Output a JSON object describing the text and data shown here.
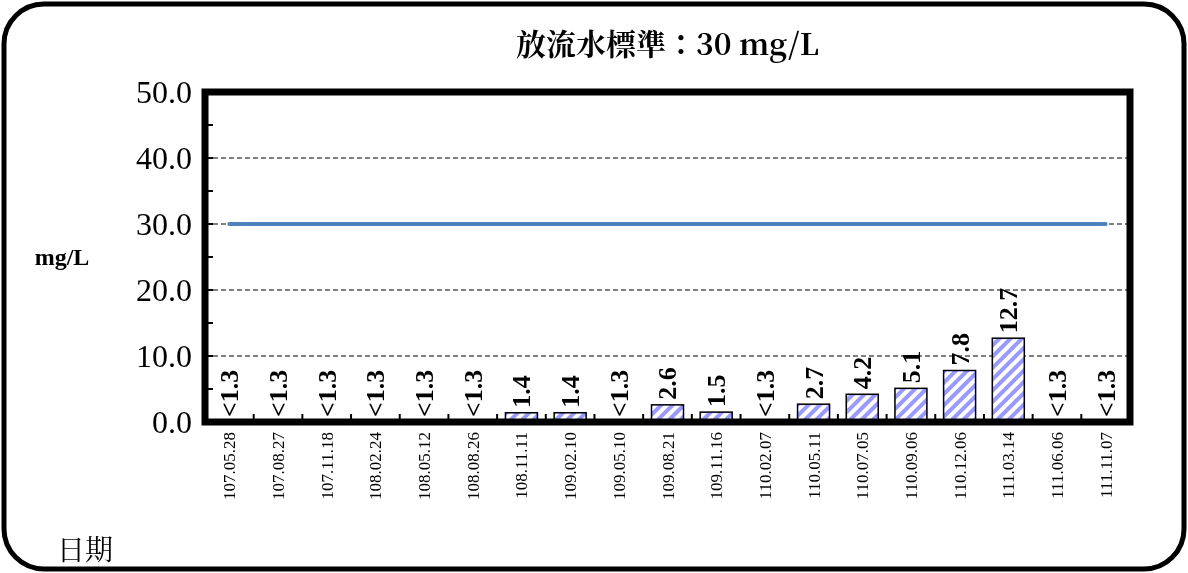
{
  "chart_data": {
    "type": "bar",
    "title": "放流水標準：30 mg/L",
    "xlabel": "日期",
    "ylabel": "mg/L",
    "categories": [
      "107.05.28",
      "107.08.27",
      "107.11.18",
      "108.02.24",
      "108.05.12",
      "108.08.26",
      "108.11.11",
      "109.02.10",
      "109.05.10",
      "109.08.21",
      "109.11.16",
      "110.02.07",
      "110.05.11",
      "110.07.05",
      "110.09.06",
      "110.12.06",
      "111.03.14",
      "111.06.06",
      "111.11.07"
    ],
    "values": [
      null,
      null,
      null,
      null,
      null,
      null,
      1.4,
      1.4,
      null,
      2.6,
      1.5,
      null,
      2.7,
      4.2,
      5.1,
      7.8,
      12.7,
      null,
      null
    ],
    "value_labels": [
      "<1.3",
      "<1.3",
      "<1.3",
      "<1.3",
      "<1.3",
      "<1.3",
      "1.4",
      "1.4",
      "<1.3",
      "2.6",
      "1.5",
      "<1.3",
      "2.7",
      "4.2",
      "5.1",
      "7.8",
      "12.7",
      "<1.3",
      "<1.3"
    ],
    "color": "#9999ff",
    "ylim": [
      0,
      50
    ],
    "yticks": [
      {
        "value": 0,
        "label": "0.0"
      },
      {
        "value": 5,
        "label": null
      },
      {
        "value": 10,
        "label": "10.0"
      },
      {
        "value": 15,
        "label": null
      },
      {
        "value": 20,
        "label": "20.0"
      },
      {
        "value": 25,
        "label": null
      },
      {
        "value": 30,
        "label": "30.0"
      },
      {
        "value": 35,
        "label": null
      },
      {
        "value": 40,
        "label": "40.0"
      },
      {
        "value": 45,
        "label": null
      },
      {
        "value": 50,
        "label": "50.0"
      }
    ],
    "grid": "y",
    "ref_lines": [
      {
        "axis": "y",
        "value": 30,
        "color": "#4f81bd"
      }
    ]
  }
}
